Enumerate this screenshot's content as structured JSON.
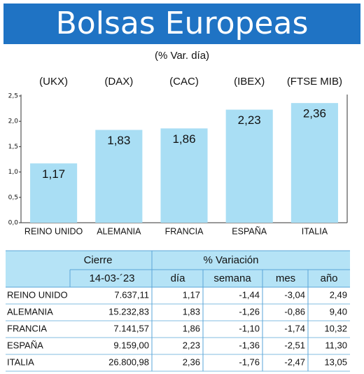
{
  "chart_data": {
    "type": "bar",
    "title": "Bolsas Europeas",
    "subtitle": "(% Var. día)",
    "tickers": [
      "(UKX)",
      "(DAX)",
      "(CAC)",
      "(IBEX)",
      "(FTSE MIB)"
    ],
    "categories": [
      "REINO UNIDO",
      "ALEMANIA",
      "FRANCIA",
      "ESPAÑA",
      "ITALIA"
    ],
    "values": [
      1.17,
      1.83,
      1.86,
      2.23,
      2.36
    ],
    "value_labels": [
      "1,17",
      "1,83",
      "1,86",
      "2,23",
      "2,36"
    ],
    "color": "#a9def4",
    "ylim": [
      0,
      2.5
    ],
    "yticks": [
      {
        "value": 0,
        "label": "0,0"
      },
      {
        "value": 0.5,
        "label": "0,5"
      },
      {
        "value": 1,
        "label": "1,0"
      },
      {
        "value": 1.5,
        "label": "1,5"
      },
      {
        "value": 2,
        "label": "2,0"
      },
      {
        "value": 2.5,
        "label": "2,5"
      }
    ],
    "grid": false
  },
  "table": {
    "header": [
      "Cierre",
      "% Variación"
    ],
    "subheader": [
      "14-03-´23",
      "día",
      "semana",
      "mes",
      "año"
    ],
    "rows": [
      [
        "REINO UNIDO",
        "7.637,11",
        "1,17",
        "-1,44",
        "-3,04",
        "2,49"
      ],
      [
        "ALEMANIA",
        "15.232,83",
        "1,83",
        "-1,26",
        "-0,86",
        "9,40"
      ],
      [
        "FRANCIA",
        "7.141,57",
        "1,86",
        "-1,10",
        "-1,74",
        "10,32"
      ],
      [
        "ESPAÑA",
        "9.159,00",
        "2,23",
        "-1,36",
        "-2,51",
        "11,30"
      ],
      [
        "ITALIA",
        "26.800,98",
        "2,36",
        "-1,76",
        "-2,47",
        "13,05"
      ]
    ]
  }
}
